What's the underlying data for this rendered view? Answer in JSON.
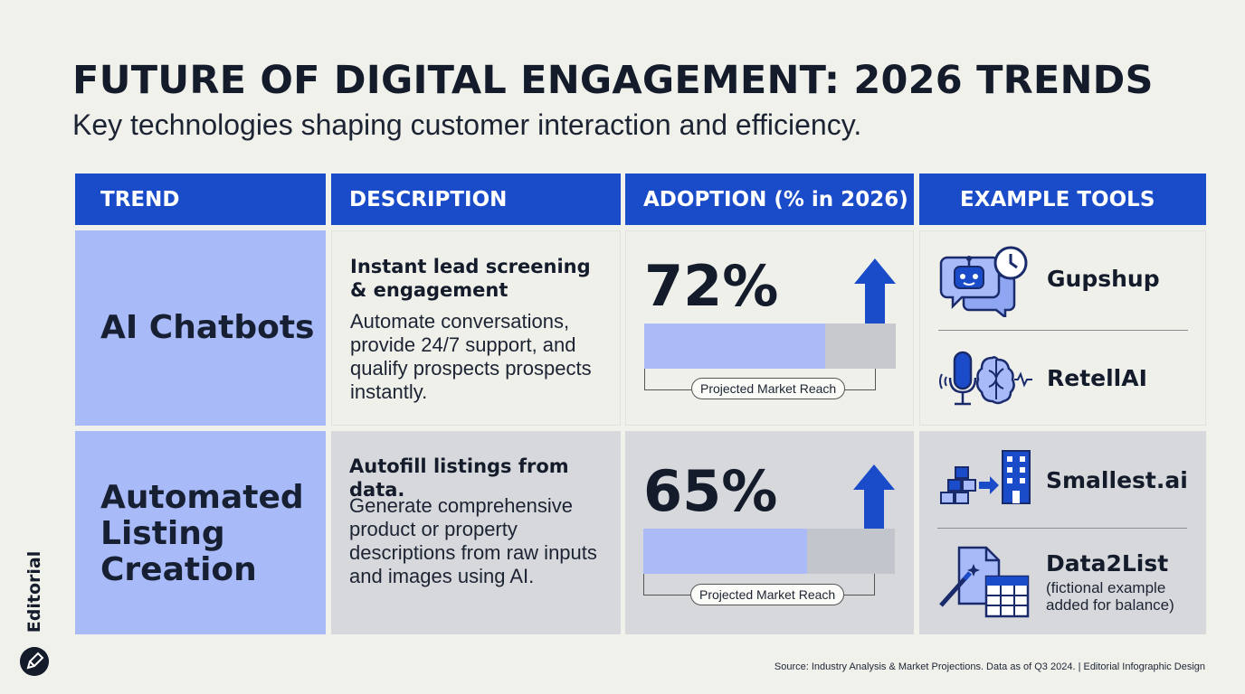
{
  "header": {
    "title": "FUTURE OF DIGITAL ENGAGEMENT: 2026 TRENDS",
    "subtitle": "Key technologies shaping customer interaction and efficiency."
  },
  "table": {
    "columns": [
      "TREND",
      "DESCRIPTION",
      "ADOPTION (% in 2026)",
      "EXAMPLE TOOLS"
    ],
    "rows": [
      {
        "trend": "AI Chatbots",
        "desc_head": "Instant lead screening & engagement",
        "desc_body": "Automate conversations, provide 24/7 support, and qualify prospects prospects instantly.",
        "adoption_label": "72%",
        "adoption_value": 72,
        "bar_caption": "Projected Market Reach",
        "tools": [
          {
            "name": "Gupshup",
            "icon": "chatbot-clock-icon"
          },
          {
            "name": "RetellAI",
            "icon": "microphone-brain-icon"
          }
        ]
      },
      {
        "trend": "Automated Listing Creation",
        "desc_head": "Autofill listings from data.",
        "desc_body": "Generate comprehensive product or property descriptions from raw inputs and images using AI.",
        "adoption_label": "65%",
        "adoption_value": 65,
        "bar_caption": "Projected Market Reach",
        "tools": [
          {
            "name": "Smallest.ai",
            "icon": "blocks-building-icon"
          },
          {
            "name": "Data2List",
            "note": "(fictional example added for balance)",
            "icon": "document-wand-table-icon"
          }
        ]
      }
    ]
  },
  "brand": {
    "name": "Editorial"
  },
  "footer": {
    "source": "Source: Industry Analysis & Market Projections. Data as of Q3 2024. | Editorial Infographic Design"
  },
  "colors": {
    "header_blue": "#1a4bc8",
    "trend_cell": "#a9baf8",
    "bar_fill": "#aabbf7",
    "arrow_blue": "#1a4bc8",
    "background": "#f1f1ec"
  }
}
